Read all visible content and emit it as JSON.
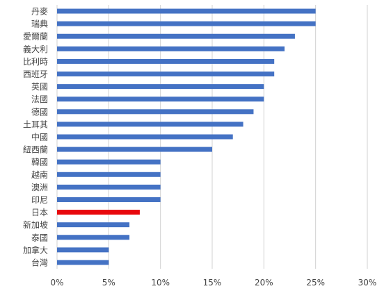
{
  "chart_data": {
    "type": "bar",
    "orientation": "horizontal",
    "title": "",
    "xlabel": "",
    "ylabel": "",
    "categories": [
      "丹麥",
      "瑞典",
      "愛爾蘭",
      "義大利",
      "比利時",
      "西班牙",
      "英國",
      "法國",
      "德國",
      "土耳其",
      "中國",
      "紐西蘭",
      "韓國",
      "越南",
      "澳洲",
      "印尼",
      "日本",
      "新加坡",
      "泰國",
      "加拿大",
      "台灣"
    ],
    "values": [
      25,
      25,
      23,
      22,
      21,
      21,
      20,
      20,
      19,
      18,
      17,
      15,
      10,
      10,
      10,
      10,
      8,
      7,
      7,
      5,
      5
    ],
    "highlight_category": "日本",
    "xlim": [
      0,
      30
    ],
    "x_ticks": [
      0,
      5,
      10,
      15,
      20,
      25,
      30
    ],
    "x_tick_labels": [
      "0%",
      "5%",
      "10%",
      "15%",
      "20%",
      "25%",
      "30%"
    ],
    "grid": "vertical",
    "legend": "none",
    "colors": {
      "bar": "#4472C4",
      "highlight": "#E8080C",
      "grid": "#D0D0D0",
      "text": "#444444"
    }
  }
}
